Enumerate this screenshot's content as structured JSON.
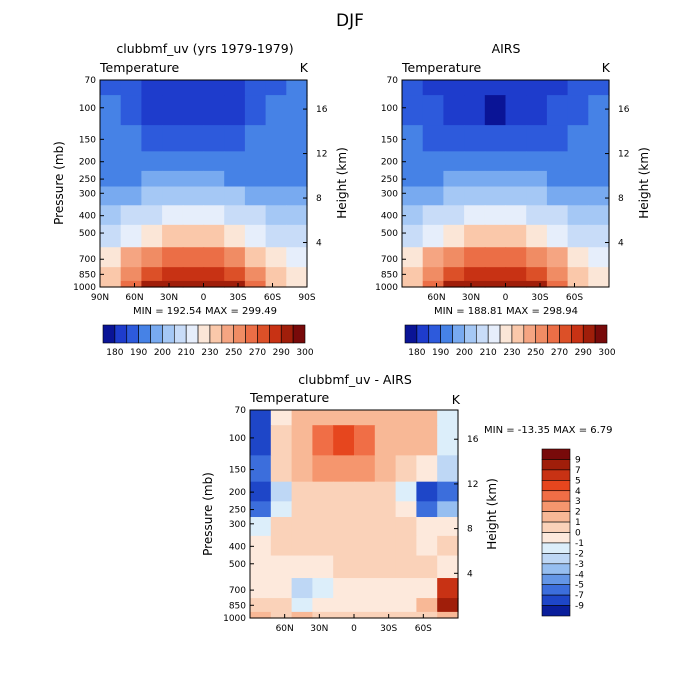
{
  "figure_title": "DJF",
  "chart_data": [
    {
      "type": "heatmap",
      "title": "clubbmf_uv (yrs 1979-1979)",
      "subtitle_left": "Temperature",
      "subtitle_right": "K",
      "ylabel": "Pressure (mb)",
      "ylabel_right": "Height (km)",
      "y_ticks": [
        "70",
        "100",
        "150",
        "200",
        "250",
        "300",
        "400",
        "500",
        "700",
        "850",
        "1000"
      ],
      "y_ticks_right": [
        "16",
        "12",
        "8",
        "4"
      ],
      "x_ticks": [
        "90N",
        "60N",
        "30N",
        "0",
        "30S",
        "60S",
        "90S"
      ],
      "stats": "MIN = 192.54   MAX = 299.49",
      "colorbar_labels": [
        "180",
        "190",
        "200",
        "210",
        "230",
        "250",
        "270",
        "290",
        "300"
      ],
      "colorbar_colors": [
        "#0a1496",
        "#1e3ccc",
        "#2d5adc",
        "#4682e6",
        "#78aaf0",
        "#a5c8f5",
        "#c8dcf8",
        "#e6eefb",
        "#fbe6d7",
        "#fac8aa",
        "#f5a582",
        "#f08c64",
        "#eb6e46",
        "#dc5028",
        "#c83214",
        "#a01e0a",
        "#780a0a"
      ],
      "temperature_K": [
        [
          205,
          200,
          197,
          194,
          193,
          194,
          196,
          200,
          205,
          210
        ],
        [
          210,
          204,
          198,
          193,
          192,
          193,
          197,
          203,
          210,
          213
        ],
        [
          213,
          210,
          207,
          203,
          202,
          203,
          206,
          210,
          213,
          214
        ],
        [
          210,
          212,
          214,
          215,
          215,
          215,
          214,
          212,
          210,
          212
        ],
        [
          212,
          216,
          220,
          222,
          222,
          221,
          219,
          216,
          212,
          214
        ],
        [
          222,
          226,
          230,
          233,
          233,
          233,
          230,
          226,
          222,
          222
        ],
        [
          235,
          240,
          246,
          250,
          251,
          250,
          246,
          240,
          236,
          235
        ],
        [
          245,
          252,
          258,
          262,
          263,
          262,
          258,
          252,
          246,
          244
        ],
        [
          256,
          265,
          273,
          278,
          279,
          278,
          273,
          264,
          257,
          253
        ],
        [
          262,
          272,
          282,
          288,
          289,
          288,
          282,
          272,
          262,
          258
        ],
        [
          264,
          276,
          290,
          296,
          298,
          297,
          290,
          277,
          264,
          258
        ]
      ]
    },
    {
      "type": "heatmap",
      "title": "AIRS",
      "subtitle_left": "Temperature",
      "subtitle_right": "K",
      "ylabel_right": "Height (km)",
      "y_ticks": [
        "70",
        "100",
        "150",
        "200",
        "250",
        "300",
        "400",
        "500",
        "700",
        "850",
        "1000"
      ],
      "y_ticks_right": [
        "16",
        "12",
        "8",
        "4"
      ],
      "x_ticks": [
        "60N",
        "30N",
        "0",
        "30S",
        "60S"
      ],
      "stats": "MIN = 188.81   MAX = 298.94",
      "colorbar_labels": [
        "180",
        "190",
        "200",
        "210",
        "230",
        "250",
        "270",
        "290",
        "300"
      ],
      "colorbar_colors": [
        "#0a1496",
        "#1e3ccc",
        "#2d5adc",
        "#4682e6",
        "#78aaf0",
        "#a5c8f5",
        "#c8dcf8",
        "#e6eefb",
        "#fbe6d7",
        "#fac8aa",
        "#f5a582",
        "#f08c64",
        "#eb6e46",
        "#dc5028",
        "#c83214",
        "#a01e0a",
        "#780a0a"
      ],
      "temperature_K": [
        [
          202,
          198,
          196,
          193,
          192,
          193,
          196,
          199,
          205,
          208
        ],
        [
          206,
          201,
          196,
          191,
          189,
          191,
          196,
          202,
          208,
          211
        ],
        [
          210,
          207,
          204,
          202,
          201,
          202,
          205,
          209,
          212,
          214
        ],
        [
          212,
          214,
          215,
          216,
          216,
          216,
          215,
          214,
          213,
          215
        ],
        [
          214,
          218,
          221,
          223,
          223,
          222,
          220,
          217,
          215,
          216
        ],
        [
          224,
          228,
          231,
          233,
          234,
          233,
          231,
          228,
          225,
          224
        ],
        [
          236,
          241,
          246,
          250,
          251,
          250,
          246,
          241,
          237,
          236
        ],
        [
          246,
          252,
          258,
          262,
          263,
          262,
          258,
          252,
          247,
          245
        ],
        [
          256,
          265,
          273,
          278,
          279,
          278,
          273,
          265,
          257,
          254
        ],
        [
          262,
          272,
          282,
          288,
          289,
          288,
          282,
          272,
          262,
          258
        ],
        [
          264,
          276,
          290,
          296,
          298,
          297,
          290,
          277,
          264,
          258
        ]
      ]
    },
    {
      "type": "heatmap",
      "title": "clubbmf_uv - AIRS",
      "subtitle_left": "Temperature",
      "subtitle_right": "K",
      "ylabel": "Pressure (mb)",
      "ylabel_right": "Height (km)",
      "y_ticks": [
        "70",
        "100",
        "150",
        "200",
        "250",
        "300",
        "400",
        "500",
        "700",
        "850",
        "1000"
      ],
      "y_ticks_right": [
        "16",
        "12",
        "8",
        "4"
      ],
      "x_ticks": [
        "60N",
        "30N",
        "0",
        "30S",
        "60S"
      ],
      "stats": "MIN = -13.35   MAX =   6.79",
      "colorbar_labels": [
        "9",
        "7",
        "5",
        "4",
        "3",
        "2",
        "1",
        "0",
        "-1",
        "-2",
        "-3",
        "-4",
        "-5",
        "-7",
        "-9"
      ],
      "colorbar_colors": [
        "#780a0a",
        "#a01e0a",
        "#c83214",
        "#e6461e",
        "#f06e46",
        "#f5966e",
        "#f8b896",
        "#fad2b9",
        "#fde9dc",
        "#dceefa",
        "#bed7f5",
        "#96bef0",
        "#6496e6",
        "#3c6edc",
        "#1e46c8",
        "#0a1e9b"
      ],
      "temperature_diff_K": [
        [
          -9,
          -1,
          1,
          1,
          1,
          1,
          1,
          1,
          1,
          -2
        ],
        [
          -8,
          0,
          1,
          3,
          4,
          3,
          1,
          1,
          1,
          -2
        ],
        [
          -7,
          0,
          1,
          2,
          2,
          2,
          1,
          0,
          -1,
          -3
        ],
        [
          -9,
          -3,
          0,
          0,
          0,
          0,
          0,
          -2,
          -9,
          -6
        ],
        [
          -7,
          -2,
          0,
          0,
          0,
          0,
          0,
          -1,
          -6,
          -4
        ],
        [
          -2,
          0,
          0,
          0,
          0,
          0,
          0,
          0,
          -1,
          -1
        ],
        [
          -1,
          0,
          0,
          0,
          0,
          0,
          0,
          0,
          -1,
          0
        ],
        [
          -1,
          -1,
          -1,
          -1,
          0,
          0,
          0,
          0,
          0,
          -1
        ],
        [
          -1,
          -1,
          -3,
          -2,
          -1,
          -1,
          -1,
          -1,
          -1,
          6
        ],
        [
          0,
          0,
          -2,
          -1,
          -1,
          -1,
          -1,
          -1,
          1,
          7
        ],
        [
          1,
          0,
          1,
          0,
          0,
          0,
          0,
          0,
          0,
          1
        ]
      ]
    }
  ]
}
